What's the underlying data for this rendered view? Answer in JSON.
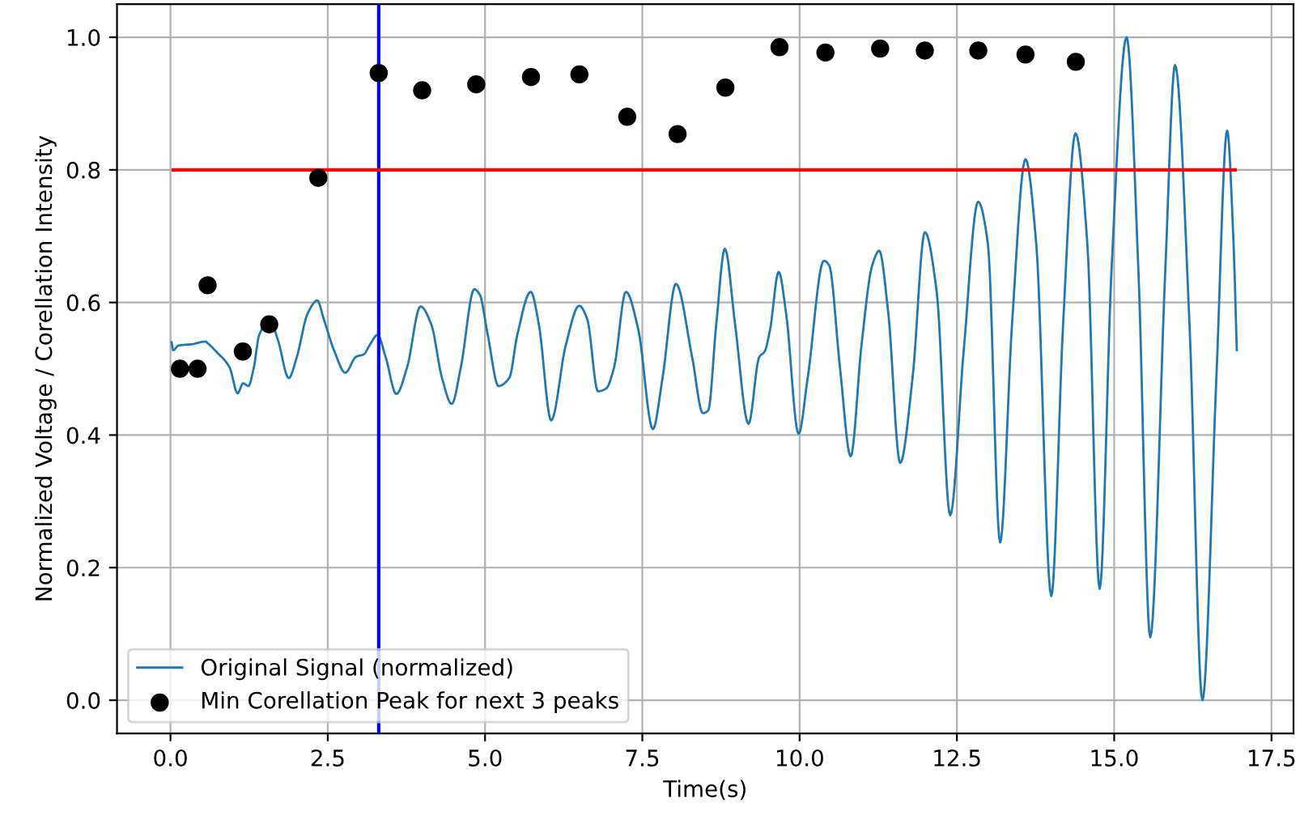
{
  "chart_data": {
    "type": "line",
    "xlabel": "Time(s)",
    "ylabel": "Normalized Voltage / Corellation Intensity",
    "series": [
      {
        "name": "Original Signal (normalized)",
        "color": "#1f77b4",
        "marker": "none",
        "x": [
          0.017,
          0.043,
          0.128,
          0.342,
          0.556,
          0.598,
          0.726,
          0.94,
          1.068,
          1.154,
          1.239,
          1.325,
          1.41,
          1.581,
          1.709,
          1.88,
          2.009,
          2.179,
          2.333,
          2.436,
          2.607,
          2.778,
          2.949,
          3.077,
          3.162,
          3.291,
          3.419,
          3.59,
          3.761,
          3.974,
          4.145,
          4.316,
          4.47,
          4.615,
          4.829,
          4.915,
          5.043,
          5.214,
          5.385,
          5.513,
          5.726,
          5.855,
          6.051,
          6.282,
          6.496,
          6.624,
          6.795,
          6.923,
          7.051,
          7.239,
          7.436,
          7.667,
          7.821,
          8.034,
          8.291,
          8.462,
          8.547,
          8.675,
          8.812,
          8.974,
          9.188,
          9.359,
          9.444,
          9.53,
          9.667,
          9.786,
          9.983,
          10.128,
          10.385,
          10.47,
          10.641,
          10.812,
          10.983,
          11.154,
          11.265,
          11.41,
          11.598,
          11.795,
          11.991,
          12.179,
          12.393,
          12.607,
          12.838,
          12.992,
          13.187,
          13.376,
          13.59,
          13.761,
          14.0,
          14.188,
          14.385,
          14.573,
          14.769,
          14.957,
          15.197,
          15.385,
          15.573,
          15.812,
          15.967,
          16.197,
          16.402,
          16.624,
          16.795,
          16.897,
          16.949
        ],
        "values": [
          0.54,
          0.528,
          0.535,
          0.537,
          0.541,
          0.538,
          0.526,
          0.502,
          0.463,
          0.478,
          0.474,
          0.502,
          0.551,
          0.573,
          0.543,
          0.486,
          0.518,
          0.583,
          0.603,
          0.575,
          0.526,
          0.494,
          0.518,
          0.522,
          0.535,
          0.551,
          0.518,
          0.462,
          0.502,
          0.594,
          0.567,
          0.486,
          0.447,
          0.502,
          0.62,
          0.612,
          0.551,
          0.474,
          0.486,
          0.551,
          0.616,
          0.567,
          0.422,
          0.535,
          0.595,
          0.575,
          0.466,
          0.47,
          0.502,
          0.616,
          0.559,
          0.409,
          0.486,
          0.628,
          0.518,
          0.433,
          0.437,
          0.567,
          0.681,
          0.567,
          0.417,
          0.518,
          0.526,
          0.559,
          0.646,
          0.583,
          0.402,
          0.486,
          0.663,
          0.656,
          0.502,
          0.368,
          0.535,
          0.656,
          0.678,
          0.583,
          0.358,
          0.486,
          0.706,
          0.616,
          0.279,
          0.526,
          0.752,
          0.689,
          0.238,
          0.567,
          0.816,
          0.689,
          0.157,
          0.567,
          0.855,
          0.689,
          0.168,
          0.648,
          1.0,
          0.648,
          0.095,
          0.648,
          0.958,
          0.567,
          0.0,
          0.486,
          0.859,
          0.689,
          0.528
        ]
      },
      {
        "name": "Min Corellation Peak for next 3 peaks",
        "type": "scatter",
        "color": "#000000",
        "marker": "circle",
        "x": [
          0.15,
          0.43,
          0.59,
          1.15,
          1.57,
          2.35,
          3.31,
          4.0,
          4.86,
          5.73,
          6.5,
          7.26,
          8.06,
          8.82,
          9.68,
          10.41,
          11.28,
          11.99,
          12.84,
          13.59,
          14.39
        ],
        "values": [
          0.5,
          0.5,
          0.626,
          0.526,
          0.567,
          0.788,
          0.946,
          0.92,
          0.929,
          0.94,
          0.944,
          0.88,
          0.854,
          0.924,
          0.985,
          0.977,
          0.983,
          0.98,
          0.98,
          0.974,
          0.963
        ]
      }
    ],
    "ref_lines": [
      {
        "axis": "x",
        "value": 3.31,
        "label": null,
        "color": "#0000ff"
      },
      {
        "axis": "y",
        "value": 0.8,
        "label": null,
        "color": "#ff0000"
      }
    ],
    "xlim": [
      -0.85,
      17.85
    ],
    "ylim": [
      -0.05,
      1.05
    ],
    "xticks": [
      {
        "value": 0,
        "label": "0.0"
      },
      {
        "value": 2.5,
        "label": "2.5"
      },
      {
        "value": 5,
        "label": "5.0"
      },
      {
        "value": 7.5,
        "label": "7.5"
      },
      {
        "value": 10,
        "label": "10.0"
      },
      {
        "value": 12.5,
        "label": "12.5"
      },
      {
        "value": 15,
        "label": "15.0"
      },
      {
        "value": 17.5,
        "label": "17.5"
      }
    ],
    "yticks": [
      {
        "value": 0,
        "label": "0.0"
      },
      {
        "value": 0.2,
        "label": "0.2"
      },
      {
        "value": 0.4,
        "label": "0.4"
      },
      {
        "value": 0.6,
        "label": "0.6"
      },
      {
        "value": 0.8,
        "label": "0.8"
      },
      {
        "value": 1.0,
        "label": "1.0"
      }
    ],
    "grid": true,
    "legend": "bottom left"
  }
}
